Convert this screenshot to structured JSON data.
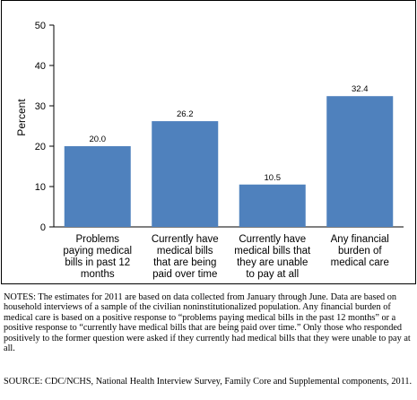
{
  "chart_data": {
    "type": "bar",
    "title": "",
    "xlabel": "",
    "ylabel": "Percent",
    "ylim": [
      0,
      50
    ],
    "yticks": [
      0,
      10,
      20,
      30,
      40,
      50
    ],
    "categories": [
      "Problems\npaying medical\nbills in past 12\nmonths",
      "Currently have\nmedical bills\nthat are being\npaid over time",
      "Currently have\nmedical bills that\nthey are unable\nto pay at all",
      "Any financial\nburden of\nmedical care"
    ],
    "values": [
      20.0,
      26.2,
      10.5,
      32.4
    ],
    "value_labels": [
      "20.0",
      "26.2",
      "10.5",
      "32.4"
    ],
    "bar_color": "#4f81bd",
    "grid": false
  },
  "notes": "NOTES: The estimates for 2011 are based on data collected from January through June. Data are based on household interviews of a sample of the civilian noninstitutionalized population.  Any financial burden of medical care is based on a positive response to “problems paying medical bills in the past 12 months” or a positive response to “currently have medical bills that are being paid over time.”  Only those who responded positively to the former question were asked if they currently had medical bills that they were unable to pay at all.",
  "source": "SOURCE: CDC/NCHS, National Health Interview Survey, Family Core and Supplemental components, 2011."
}
